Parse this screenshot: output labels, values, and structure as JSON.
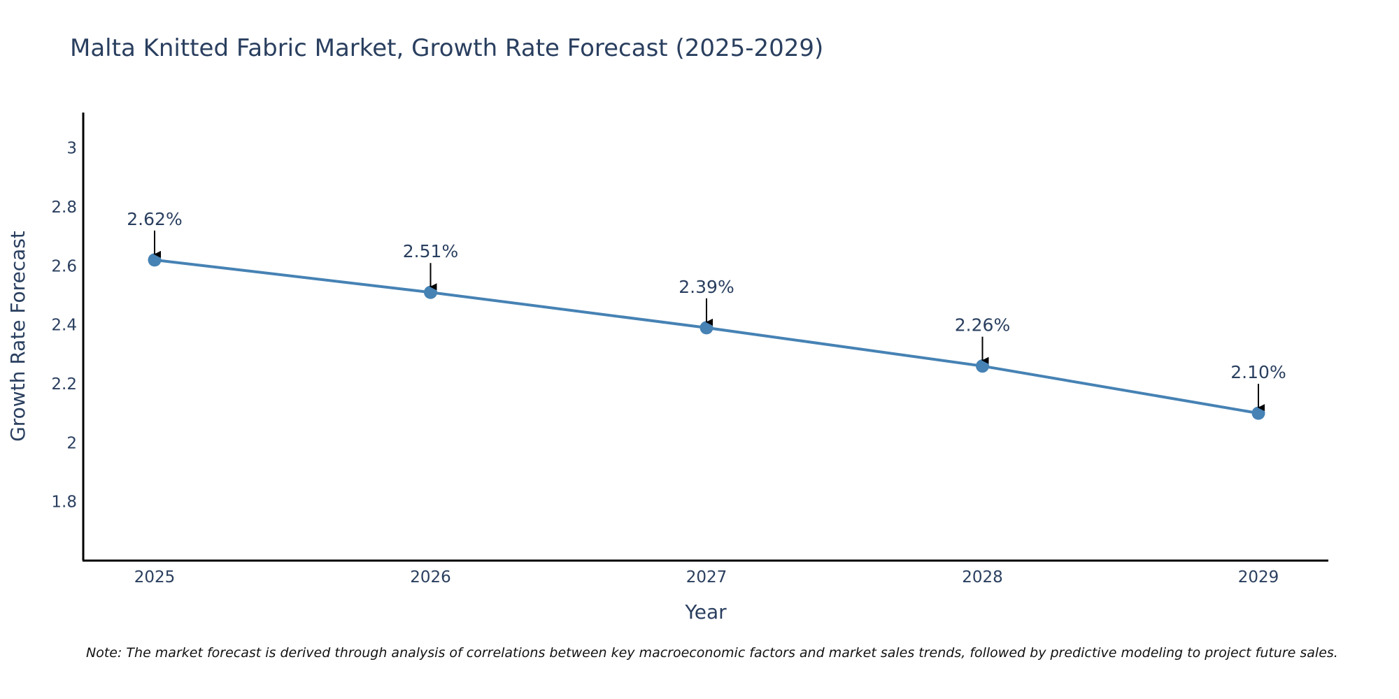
{
  "chart_data": {
    "type": "line",
    "title": "Malta Knitted Fabric Market, Growth Rate Forecast (2025-2029)",
    "xlabel": "Year",
    "ylabel": "Growth Rate Forecast",
    "categories": [
      "2025",
      "2026",
      "2027",
      "2028",
      "2029"
    ],
    "values": [
      2.62,
      2.51,
      2.39,
      2.26,
      2.1
    ],
    "data_labels": [
      "2.62%",
      "2.51%",
      "2.39%",
      "2.26%",
      "2.10%"
    ],
    "ylim": [
      1.6,
      3.12
    ],
    "yticks": [
      1.8,
      2,
      2.2,
      2.4,
      2.6,
      2.8,
      3
    ],
    "ytick_labels": [
      "1.8",
      "2",
      "2.2",
      "2.4",
      "2.6",
      "2.8",
      "3"
    ],
    "grid": false,
    "series_color": "#4682b4",
    "axis_color": "#000000",
    "arrow_color": "#000000",
    "note": "Note: The market forecast is derived through analysis of correlations between key macroeconomic factors and market sales trends, followed by predictive modeling to project future sales."
  }
}
